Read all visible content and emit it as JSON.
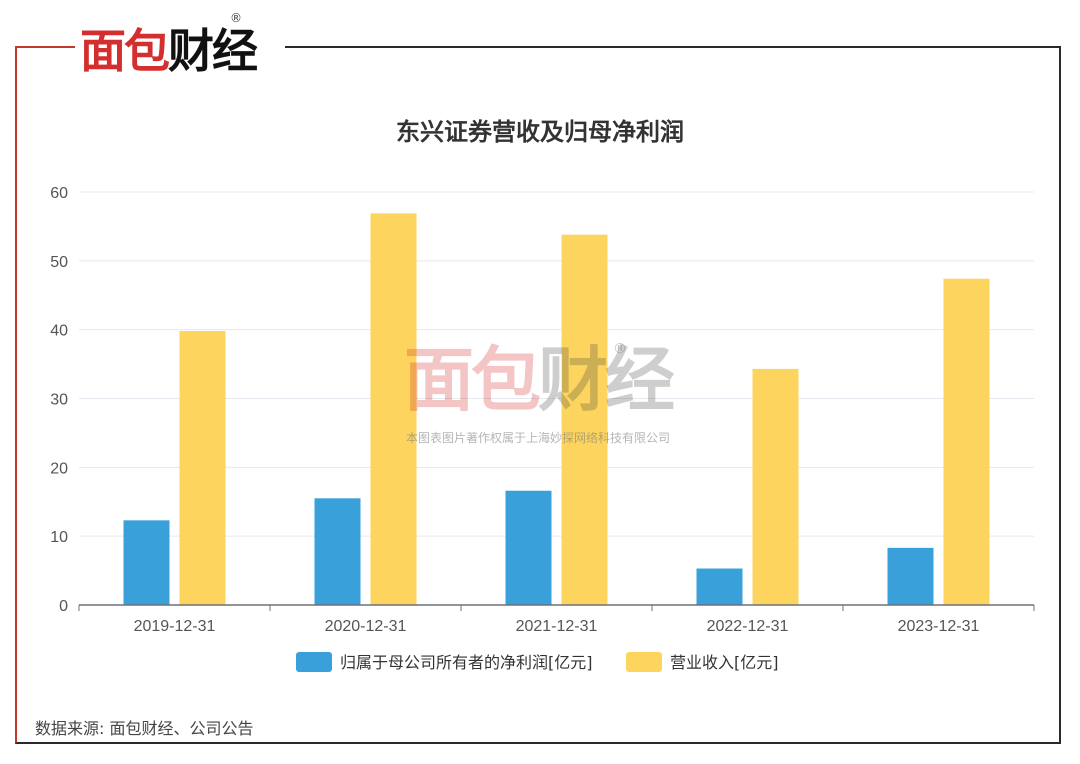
{
  "brand": {
    "logo_red": "面包",
    "logo_dark": "财经",
    "registered": "®",
    "watermark_copyright": "本图表图片著作权属于上海妙探网络科技有限公司"
  },
  "source_note": "数据来源: 面包财经、公司公告",
  "colors": {
    "series_profit": "#3aa0da",
    "series_revenue": "#fdd45e",
    "frame_red": "#c0392b",
    "grid": "#e6e8ef"
  },
  "chart_data": {
    "type": "bar",
    "title": "东兴证券营收及归母净利润",
    "xlabel": "",
    "ylabel": "",
    "ylim": [
      0,
      60
    ],
    "yticks": [
      0,
      10,
      20,
      30,
      40,
      50,
      60
    ],
    "grid": true,
    "legend_position": "bottom-center",
    "categories": [
      "2019-12-31",
      "2020-12-31",
      "2021-12-31",
      "2022-12-31",
      "2023-12-31"
    ],
    "series": [
      {
        "name": "归属于母公司所有者的净利润[亿元]",
        "values": [
          12.3,
          15.5,
          16.6,
          5.3,
          8.3
        ]
      },
      {
        "name": "营业收入[亿元]",
        "values": [
          39.8,
          56.9,
          53.8,
          34.3,
          47.4
        ]
      }
    ]
  }
}
